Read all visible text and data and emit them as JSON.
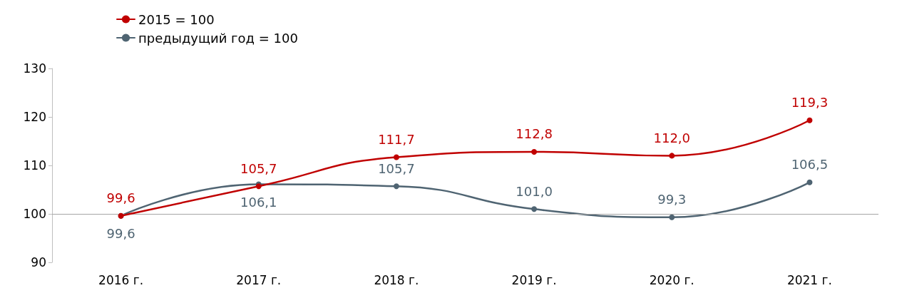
{
  "chart_data": {
    "type": "line",
    "categories": [
      "2016 г.",
      "2017 г.",
      "2018 г.",
      "2019 г.",
      "2020 г.",
      "2021 г."
    ],
    "series": [
      {
        "name": "2015 = 100",
        "color": "#c00000",
        "values": [
          99.6,
          105.7,
          111.7,
          112.8,
          112.0,
          119.3
        ],
        "value_labels": [
          "99,6",
          "105,7",
          "111,7",
          "112,8",
          "112,0",
          "119,3"
        ]
      },
      {
        "name": "предыдущий год = 100",
        "color": "#4f6472",
        "values": [
          99.6,
          106.1,
          105.7,
          101.0,
          99.3,
          106.5
        ],
        "value_labels": [
          "99,6",
          "106,1",
          "105,7",
          "101,0",
          "99,3",
          "106,5"
        ]
      }
    ],
    "ylim": [
      90,
      130
    ],
    "yticks": [
      90,
      100,
      110,
      120,
      130
    ],
    "grid": false,
    "legend": "top left",
    "marker": "circle",
    "line_style": "solid",
    "ref_lines": [
      {
        "axis": "y",
        "value": 100,
        "color": "#a6a6a6"
      }
    ]
  }
}
